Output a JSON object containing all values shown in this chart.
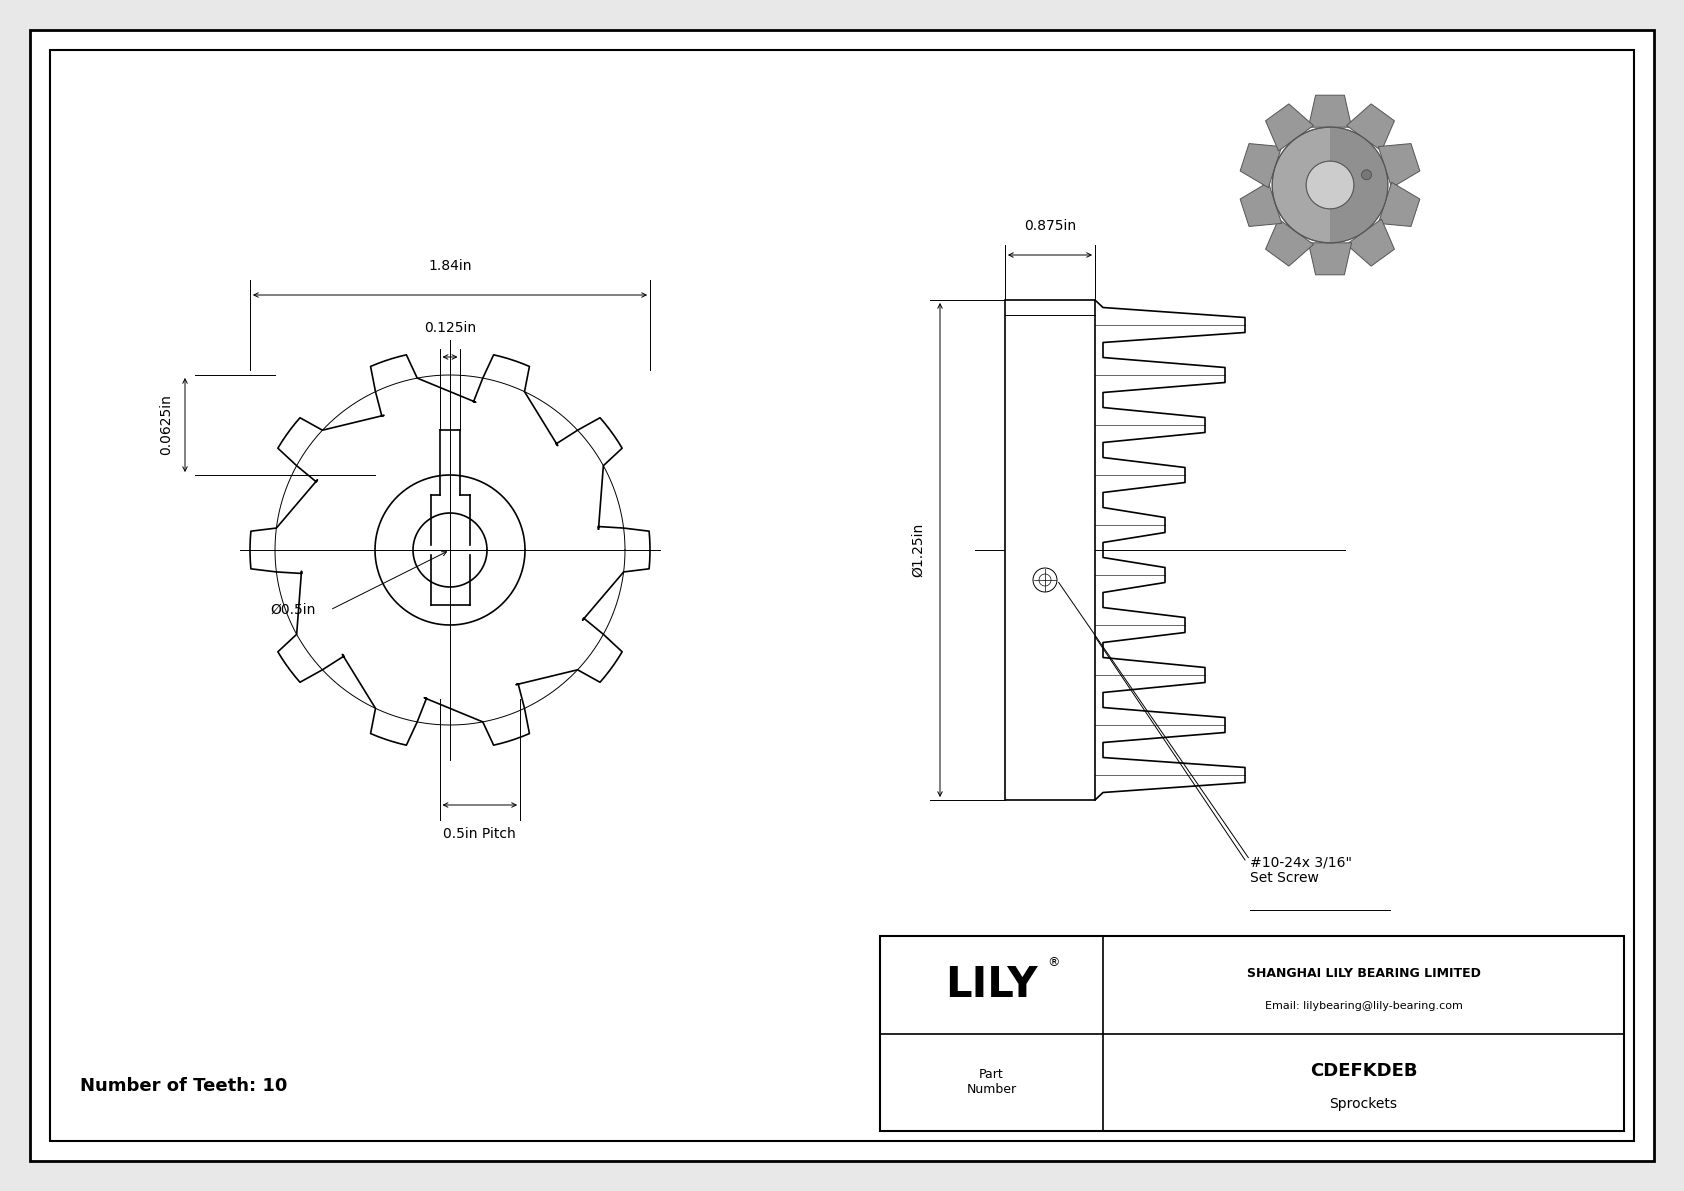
{
  "bg_color": "#e8e8e8",
  "drawing_bg": "#ffffff",
  "border_color": "#000000",
  "line_color": "#000000",
  "title": "CDEFKDEB",
  "subtitle": "Sprockets",
  "company": "SHANGHAI LILY BEARING LIMITED",
  "email": "Email: lilybearing@lily-bearing.com",
  "part_number_label": "Part\nNumber",
  "logo": "LILY",
  "logo_reg": "®",
  "teeth_label": "Number of Teeth: 10",
  "dim_1_84": "1.84in",
  "dim_0_125": "0.125in",
  "dim_0_0625": "0.0625in",
  "dim_0_5_bore": "Ø0.5in",
  "dim_0_875": "0.875in",
  "dim_1_25": "Ø1.25in",
  "dim_pitch": "0.5in Pitch",
  "set_screw": "#10-24x 3/16\"\nSet Screw",
  "n_teeth": 10
}
